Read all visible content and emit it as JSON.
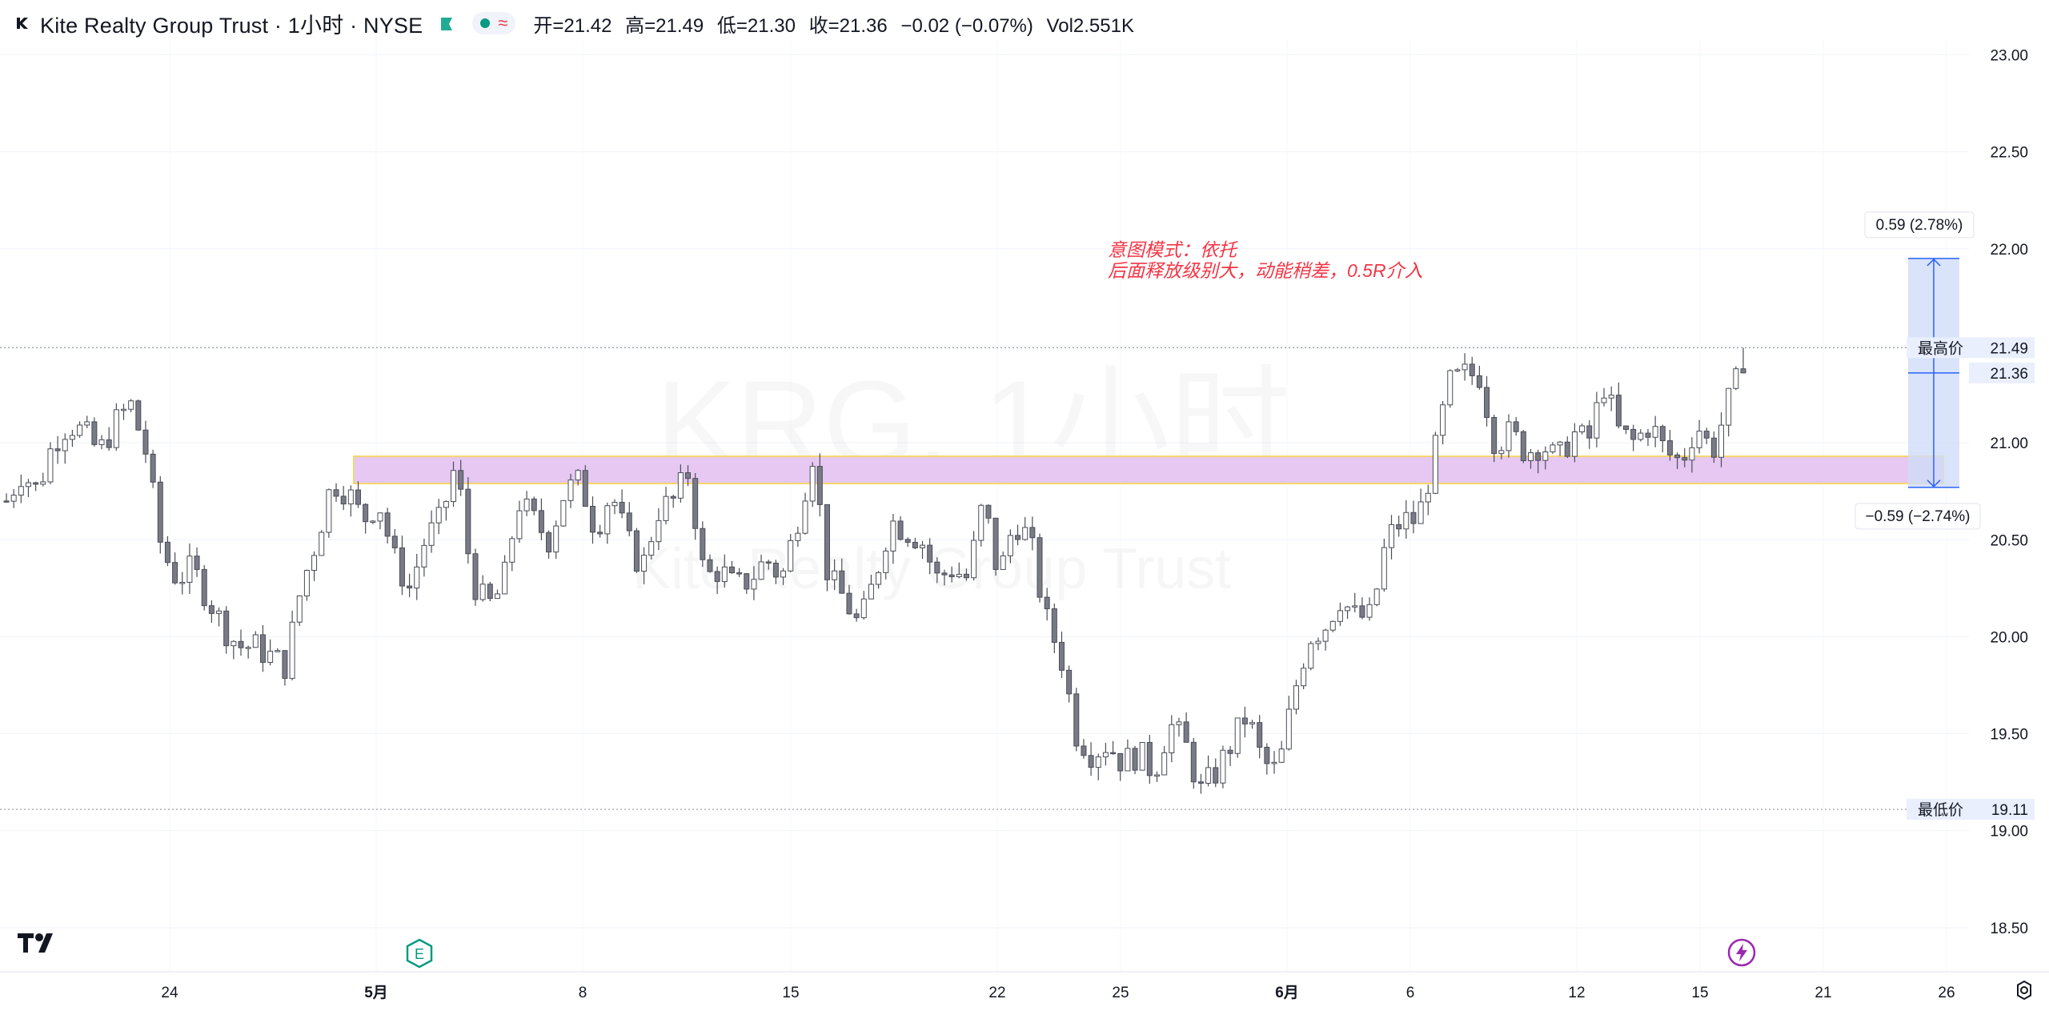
{
  "header": {
    "title": "Kite Realty Group Trust · 1小时 · NYSE",
    "ohlc": {
      "open": "开=21.42",
      "high": "高=21.49",
      "low": "低=21.30",
      "close": "收=21.36",
      "change": "−0.02 (−0.07%)",
      "volume": "Vol2.551K"
    }
  },
  "watermark": {
    "symbol_line": "KRG, 1小时",
    "name_line": "Kite Realty Group Trust"
  },
  "annotation": {
    "line1": "意图模式：依托",
    "line2": "后面释放级别大，动能稍差，0.5R介入",
    "color": "#f23645"
  },
  "measure": {
    "up_label": "0.59 (2.78%)",
    "down_label": "−0.59 (−2.74%)",
    "top_price": 21.95,
    "mid_price": 21.36,
    "bottom_price": 20.77,
    "fill": "#cfdcf7",
    "line_color": "#2962ff"
  },
  "zone": {
    "top_price": 20.93,
    "bottom_price": 20.79,
    "fill": "#e6c8f2",
    "border": "#f6d66b"
  },
  "price_axis": {
    "ticks": [
      "23.00",
      "22.50",
      "22.00",
      "21.50",
      "21.00",
      "20.50",
      "20.00",
      "19.50",
      "19.00",
      "18.50"
    ],
    "high_label": "最高价",
    "high_value": "21.49",
    "current_value": "21.36",
    "low_label": "最低价",
    "low_value": "19.11"
  },
  "time_axis": {
    "ticks": [
      "24",
      "5月",
      "8",
      "15",
      "22",
      "25",
      "6月",
      "6",
      "12",
      "15",
      "21",
      "26"
    ]
  },
  "icons": {
    "brand": "tradingview-logo-icon",
    "earnings": "earnings-e-icon",
    "dividend": "lightning-icon",
    "settings": "gear-icon"
  },
  "chart_data": {
    "type": "candlestick",
    "title": "Kite Realty Group Trust · 1小时 · NYSE",
    "ylim": [
      18.4,
      23.2
    ],
    "x_ticks": [
      "24",
      "5月",
      "8",
      "15",
      "22",
      "25",
      "6月",
      "6",
      "12",
      "15",
      "21",
      "26"
    ],
    "y_ticks": [
      23.0,
      22.5,
      22.0,
      21.5,
      21.0,
      20.5,
      20.0,
      19.5,
      19.0,
      18.5
    ],
    "highest": 21.49,
    "lowest": 19.11,
    "last": 21.36,
    "up_color": "#ffffff",
    "down_color": "#787b86",
    "wick_color": "#4a4d57",
    "close_path": [
      20.7,
      20.85,
      20.75,
      21.0,
      21.1,
      21.05,
      20.95,
      21.1,
      21.2,
      20.95,
      20.45,
      20.3,
      20.35,
      20.2,
      20.05,
      19.95,
      19.95,
      19.9,
      19.85,
      20.25,
      20.5,
      20.8,
      20.75,
      20.6,
      20.7,
      20.4,
      20.25,
      20.5,
      20.6,
      20.9,
      20.3,
      20.15,
      20.25,
      20.7,
      20.6,
      20.5,
      20.75,
      20.8,
      20.55,
      20.75,
      20.5,
      20.35,
      20.65,
      20.7,
      20.85,
      20.3,
      20.35,
      20.25,
      20.3,
      20.4,
      20.3,
      20.6,
      20.95,
      20.3,
      20.2,
      20.05,
      20.3,
      20.6,
      20.55,
      20.5,
      20.3,
      20.35,
      20.3,
      20.7,
      20.3,
      20.6,
      20.5,
      20.1,
      19.9,
      19.5,
      19.4,
      19.45,
      19.35,
      19.4,
      19.3,
      19.55,
      19.45,
      19.2,
      19.3,
      19.45,
      19.6,
      19.35,
      19.3,
      19.7,
      20.0,
      20.05,
      20.2,
      20.1,
      20.1,
      20.5,
      20.6,
      20.6,
      20.9,
      21.3,
      21.35,
      21.35,
      21.0,
      21.05,
      20.95,
      21.0,
      20.9,
      21.05,
      21.0,
      21.3,
      21.05,
      21.0,
      21.1,
      20.95,
      20.9,
      21.1,
      20.95,
      21.2,
      21.4
    ],
    "count": 238
  }
}
